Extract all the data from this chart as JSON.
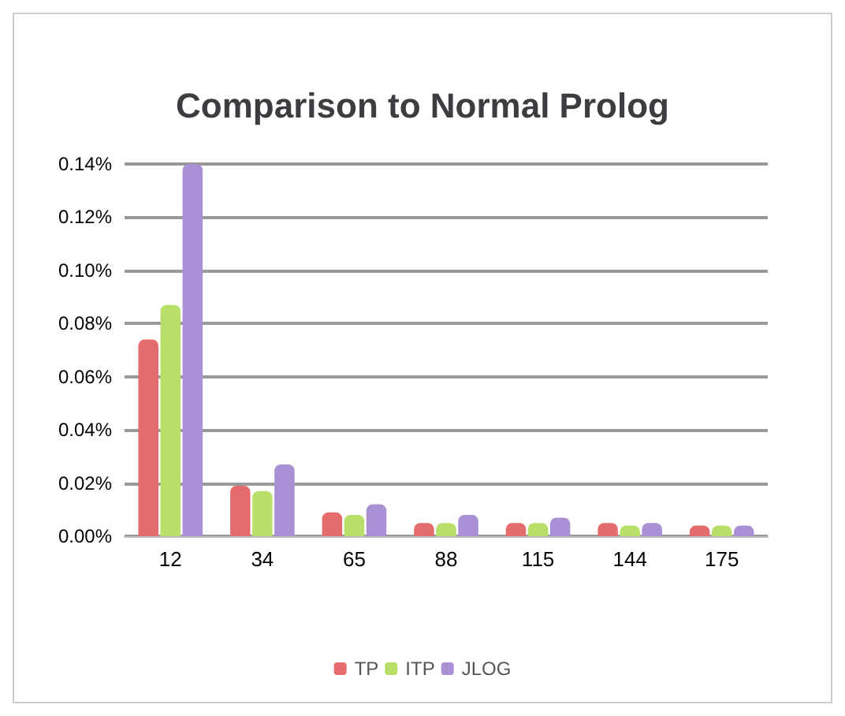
{
  "chart_data": {
    "type": "bar",
    "title": "Comparison to Normal Prolog",
    "categories": [
      "12",
      "34",
      "65",
      "88",
      "115",
      "144",
      "175"
    ],
    "series": [
      {
        "name": "TP",
        "color": "#e46c6c",
        "values": [
          0.074,
          0.019,
          0.009,
          0.005,
          0.005,
          0.005,
          0.004
        ]
      },
      {
        "name": "ITP",
        "color": "#b8e068",
        "values": [
          0.087,
          0.017,
          0.008,
          0.005,
          0.005,
          0.004,
          0.004
        ]
      },
      {
        "name": "JLOG",
        "color": "#a98fd4",
        "values": [
          0.14,
          0.027,
          0.012,
          0.008,
          0.007,
          0.005,
          0.004
        ]
      }
    ],
    "ylim": [
      0,
      0.14
    ],
    "yticks": [
      {
        "value": 0,
        "label": "0.00%"
      },
      {
        "value": 0.02,
        "label": "0.02%"
      },
      {
        "value": 0.04,
        "label": "0.04%"
      },
      {
        "value": 0.06,
        "label": "0.06%"
      },
      {
        "value": 0.08,
        "label": "0.08%"
      },
      {
        "value": 0.1,
        "label": "0.10%"
      },
      {
        "value": 0.12,
        "label": "0.12%"
      },
      {
        "value": 0.14,
        "label": "0.14%"
      }
    ],
    "grid": "y",
    "legend": "bottom"
  }
}
